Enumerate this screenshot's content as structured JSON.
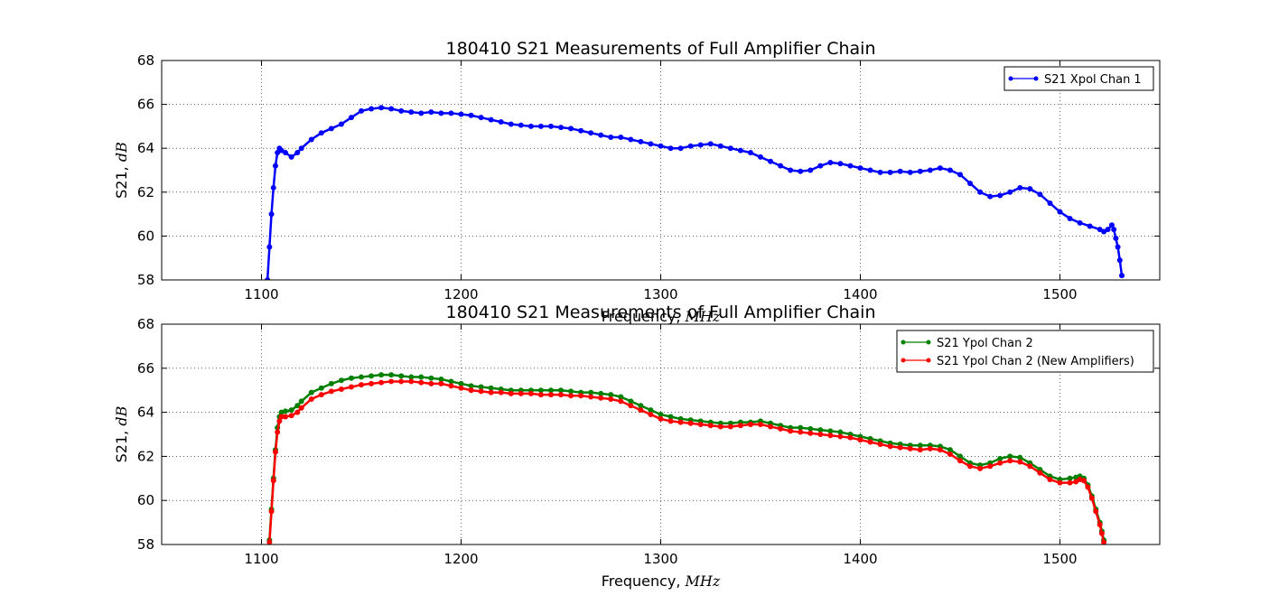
{
  "chart_data": [
    {
      "type": "line",
      "title": "180410 S21 Measurements of Full Amplifier Chain",
      "xlabel_text": "Frequency, ",
      "xlabel_unit": "MHz",
      "ylabel_text": "S21, ",
      "ylabel_unit": "dB",
      "xlim": [
        1050,
        1550
      ],
      "ylim": [
        58,
        68
      ],
      "xticks": [
        1100,
        1200,
        1300,
        1400,
        1500
      ],
      "yticks": [
        58,
        60,
        62,
        64,
        66,
        68
      ],
      "grid": true,
      "legend_position": "top-right",
      "series": [
        {
          "name": "S21 Xpol Chan 1",
          "color": "#0000ff",
          "x": [
            1103,
            1104,
            1105,
            1106,
            1107,
            1108,
            1109,
            1110,
            1112,
            1115,
            1118,
            1120,
            1125,
            1130,
            1135,
            1140,
            1145,
            1150,
            1155,
            1160,
            1165,
            1170,
            1175,
            1180,
            1185,
            1190,
            1195,
            1200,
            1205,
            1210,
            1215,
            1220,
            1225,
            1230,
            1235,
            1240,
            1245,
            1250,
            1255,
            1260,
            1265,
            1270,
            1275,
            1280,
            1285,
            1290,
            1295,
            1300,
            1305,
            1310,
            1315,
            1320,
            1325,
            1330,
            1335,
            1340,
            1345,
            1350,
            1355,
            1360,
            1365,
            1370,
            1375,
            1380,
            1385,
            1390,
            1395,
            1400,
            1405,
            1410,
            1415,
            1420,
            1425,
            1430,
            1435,
            1440,
            1445,
            1450,
            1455,
            1460,
            1465,
            1470,
            1475,
            1480,
            1485,
            1490,
            1495,
            1500,
            1505,
            1510,
            1515,
            1520,
            1522,
            1524,
            1526,
            1527,
            1528,
            1529,
            1530,
            1531
          ],
          "y": [
            58.0,
            59.5,
            61.0,
            62.2,
            63.2,
            63.8,
            64.0,
            63.9,
            63.8,
            63.6,
            63.8,
            64.0,
            64.4,
            64.7,
            64.9,
            65.1,
            65.4,
            65.7,
            65.8,
            65.85,
            65.8,
            65.7,
            65.65,
            65.6,
            65.65,
            65.6,
            65.6,
            65.55,
            65.5,
            65.4,
            65.3,
            65.2,
            65.1,
            65.05,
            65.0,
            65.0,
            65.0,
            64.95,
            64.9,
            64.8,
            64.7,
            64.6,
            64.5,
            64.5,
            64.4,
            64.3,
            64.2,
            64.1,
            64.0,
            64.0,
            64.1,
            64.15,
            64.2,
            64.1,
            64.0,
            63.9,
            63.8,
            63.6,
            63.4,
            63.2,
            63.0,
            62.95,
            63.0,
            63.2,
            63.35,
            63.3,
            63.2,
            63.1,
            63.0,
            62.9,
            62.9,
            62.95,
            62.9,
            62.95,
            63.0,
            63.1,
            63.0,
            62.8,
            62.4,
            62.0,
            61.8,
            61.85,
            62.0,
            62.2,
            62.15,
            61.9,
            61.5,
            61.1,
            60.8,
            60.6,
            60.45,
            60.3,
            60.2,
            60.3,
            60.5,
            60.3,
            59.9,
            59.5,
            58.9,
            58.2
          ]
        }
      ]
    },
    {
      "type": "line",
      "title": "180410 S21 Measurements of Full Amplifier Chain",
      "xlabel_text": "Frequency, ",
      "xlabel_unit": "MHz",
      "ylabel_text": "S21, ",
      "ylabel_unit": "dB",
      "xlim": [
        1050,
        1550
      ],
      "ylim": [
        58,
        68
      ],
      "xticks": [
        1100,
        1200,
        1300,
        1400,
        1500
      ],
      "yticks": [
        58,
        60,
        62,
        64,
        66,
        68
      ],
      "grid": true,
      "legend_position": "top-right",
      "series": [
        {
          "name": "S21 Ypol Chan 2",
          "color": "#008000",
          "x": [
            1104,
            1105,
            1106,
            1107,
            1108,
            1109,
            1110,
            1112,
            1115,
            1118,
            1120,
            1125,
            1130,
            1135,
            1140,
            1145,
            1150,
            1155,
            1160,
            1165,
            1170,
            1175,
            1180,
            1185,
            1190,
            1195,
            1200,
            1205,
            1210,
            1215,
            1220,
            1225,
            1230,
            1235,
            1240,
            1245,
            1250,
            1255,
            1260,
            1265,
            1270,
            1275,
            1280,
            1285,
            1290,
            1295,
            1300,
            1305,
            1310,
            1315,
            1320,
            1325,
            1330,
            1335,
            1340,
            1345,
            1350,
            1355,
            1360,
            1365,
            1370,
            1375,
            1380,
            1385,
            1390,
            1395,
            1400,
            1405,
            1410,
            1415,
            1420,
            1425,
            1430,
            1435,
            1440,
            1445,
            1450,
            1455,
            1460,
            1465,
            1470,
            1475,
            1480,
            1485,
            1490,
            1495,
            1500,
            1505,
            1508,
            1510,
            1512,
            1514,
            1516,
            1518,
            1520,
            1521,
            1522
          ],
          "y": [
            58.2,
            59.6,
            61.0,
            62.3,
            63.3,
            63.8,
            64.0,
            64.05,
            64.1,
            64.3,
            64.5,
            64.9,
            65.1,
            65.3,
            65.45,
            65.55,
            65.6,
            65.65,
            65.7,
            65.7,
            65.65,
            65.6,
            65.6,
            65.55,
            65.5,
            65.4,
            65.3,
            65.2,
            65.15,
            65.1,
            65.05,
            65.0,
            65.0,
            65.0,
            65.0,
            65.0,
            65.0,
            64.95,
            64.9,
            64.9,
            64.85,
            64.8,
            64.7,
            64.5,
            64.3,
            64.1,
            63.9,
            63.8,
            63.7,
            63.65,
            63.6,
            63.55,
            63.5,
            63.5,
            63.55,
            63.55,
            63.6,
            63.5,
            63.4,
            63.3,
            63.3,
            63.25,
            63.2,
            63.15,
            63.1,
            63.0,
            62.9,
            62.8,
            62.7,
            62.6,
            62.55,
            62.5,
            62.5,
            62.5,
            62.45,
            62.3,
            62.0,
            61.7,
            61.6,
            61.7,
            61.9,
            62.0,
            61.95,
            61.7,
            61.4,
            61.1,
            60.95,
            61.0,
            61.05,
            61.1,
            61.0,
            60.7,
            60.2,
            59.6,
            59.0,
            58.6,
            58.2
          ]
        },
        {
          "name": "S21 Ypol Chan 2 (New Amplifiers)",
          "color": "#ff0000",
          "x": [
            1104,
            1105,
            1106,
            1107,
            1108,
            1109,
            1110,
            1112,
            1115,
            1118,
            1120,
            1125,
            1130,
            1135,
            1140,
            1145,
            1150,
            1155,
            1160,
            1165,
            1170,
            1175,
            1180,
            1185,
            1190,
            1195,
            1200,
            1205,
            1210,
            1215,
            1220,
            1225,
            1230,
            1235,
            1240,
            1245,
            1250,
            1255,
            1260,
            1265,
            1270,
            1275,
            1280,
            1285,
            1290,
            1295,
            1300,
            1305,
            1310,
            1315,
            1320,
            1325,
            1330,
            1335,
            1340,
            1345,
            1350,
            1355,
            1360,
            1365,
            1370,
            1375,
            1380,
            1385,
            1390,
            1395,
            1400,
            1405,
            1410,
            1415,
            1420,
            1425,
            1430,
            1435,
            1440,
            1445,
            1450,
            1455,
            1460,
            1465,
            1470,
            1475,
            1480,
            1485,
            1490,
            1495,
            1500,
            1505,
            1508,
            1510,
            1512,
            1514,
            1516,
            1518,
            1520,
            1521,
            1522
          ],
          "y": [
            58.1,
            59.5,
            60.9,
            62.2,
            63.1,
            63.6,
            63.8,
            63.8,
            63.85,
            64.0,
            64.2,
            64.6,
            64.8,
            64.95,
            65.05,
            65.15,
            65.25,
            65.3,
            65.35,
            65.4,
            65.4,
            65.4,
            65.35,
            65.3,
            65.3,
            65.2,
            65.1,
            65.0,
            64.95,
            64.9,
            64.9,
            64.85,
            64.85,
            64.85,
            64.8,
            64.8,
            64.8,
            64.75,
            64.75,
            64.7,
            64.65,
            64.6,
            64.5,
            64.3,
            64.1,
            63.9,
            63.7,
            63.6,
            63.55,
            63.5,
            63.45,
            63.4,
            63.35,
            63.35,
            63.4,
            63.45,
            63.45,
            63.35,
            63.25,
            63.15,
            63.1,
            63.05,
            63.0,
            62.95,
            62.9,
            62.85,
            62.75,
            62.65,
            62.55,
            62.45,
            62.4,
            62.35,
            62.3,
            62.35,
            62.3,
            62.1,
            61.8,
            61.55,
            61.45,
            61.55,
            61.7,
            61.8,
            61.75,
            61.55,
            61.25,
            60.95,
            60.8,
            60.8,
            60.85,
            60.95,
            60.9,
            60.6,
            60.1,
            59.5,
            58.9,
            58.5,
            58.1
          ]
        }
      ]
    }
  ]
}
